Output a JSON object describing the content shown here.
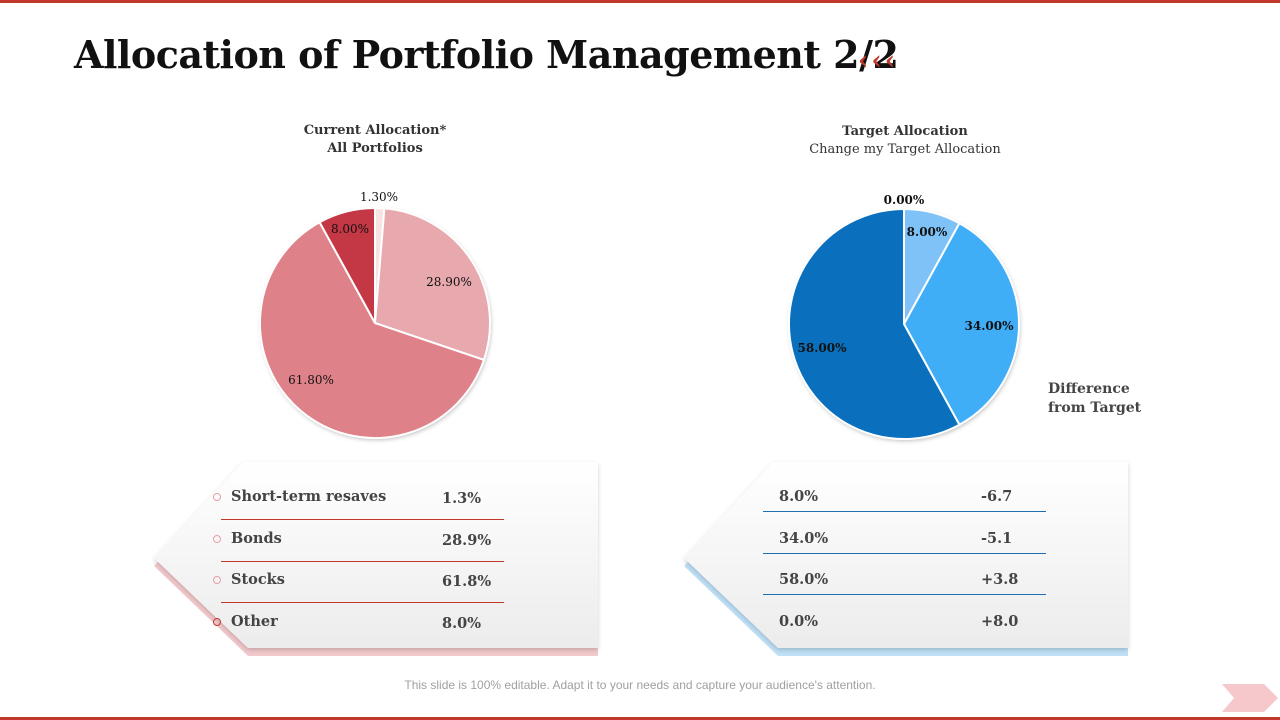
{
  "page": {
    "title": "Allocation of Portfolio Management 2/2",
    "title_marks": "‹‹‹"
  },
  "left_chart": {
    "title_line1": "Current Allocation*",
    "title_line2": "All Portfolios"
  },
  "right_chart": {
    "title_line1": "Target Allocation",
    "title_line2": "Change my Target Allocation"
  },
  "difference_label": {
    "line1": "Difference",
    "line2": "from Target"
  },
  "chart_data": [
    {
      "type": "pie",
      "title": "Current Allocation* All Portfolios",
      "categories": [
        "Short-term resaves",
        "Bonds",
        "Stocks",
        "Other"
      ],
      "values": [
        1.3,
        28.9,
        61.8,
        8.0
      ],
      "labels": [
        "1.30%",
        "28.90%",
        "61.80%",
        "8.00%"
      ],
      "colors": [
        "#f8e3e3",
        "#e8a9ae",
        "#df8189",
        "#c43845"
      ]
    },
    {
      "type": "pie",
      "title": "Target Allocation Change my Target Allocation",
      "values": [
        0.0,
        8.0,
        34.0,
        58.0
      ],
      "labels": [
        "0.00%",
        "8.00%",
        "34.00%",
        "58.00%"
      ],
      "colors": [
        "#cfe6fb",
        "#7fc2f7",
        "#40adf7",
        "#0a70bd"
      ]
    }
  ],
  "left_table": {
    "rows": [
      {
        "label": "Short-term resaves",
        "value": "1.3%"
      },
      {
        "label": "Bonds",
        "value": "28.9%"
      },
      {
        "label": "Stocks",
        "value": "61.8%"
      },
      {
        "label": "Other",
        "value": "8.0%"
      }
    ]
  },
  "right_table": {
    "rows": [
      {
        "target": "8.0%",
        "difference": "-6.7"
      },
      {
        "target": "34.0%",
        "difference": "-5.1"
      },
      {
        "target": "58.0%",
        "difference": "+3.8"
      },
      {
        "target": "0.0%",
        "difference": "+8.0"
      }
    ]
  },
  "footer": {
    "text": "This slide is 100% editable. Adapt it to your needs and capture your audience's attention."
  },
  "colors": {
    "accent_red": "#c0392b",
    "separator_red": "#c0392b",
    "separator_blue": "#1f6fb0"
  }
}
